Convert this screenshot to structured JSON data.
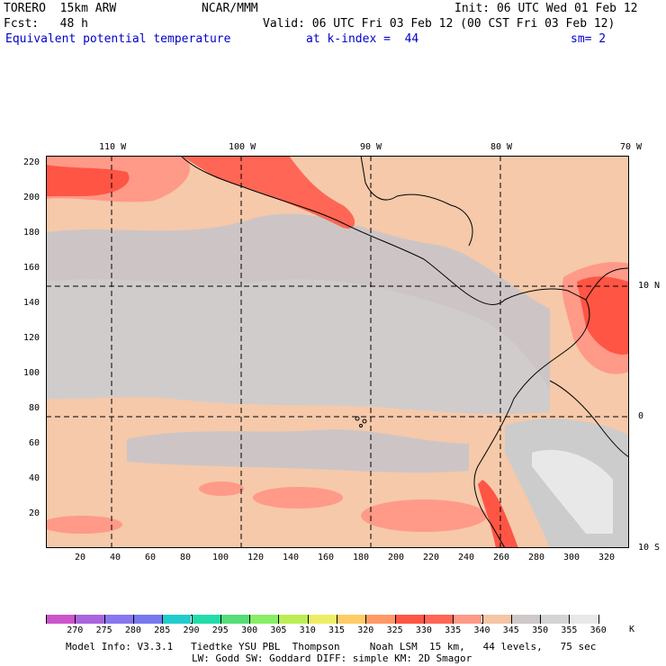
{
  "header": {
    "model": "TORERO  15km ARW",
    "org": "NCAR/MMM",
    "init": "Init: 06 UTC Wed 01 Feb 12",
    "fcst": "Fcst:   48 h",
    "valid": "Valid: 06 UTC Fri 03 Feb 12 (00 CST Fri 03 Feb 12)",
    "field": "Equivalent potential temperature",
    "level": "at k-index =  44",
    "smooth": "sm= 2"
  },
  "map": {
    "top_lon_labels": [
      "110 W",
      "100 W",
      "90 W",
      "80 W",
      "70 W"
    ],
    "right_lat_labels": [
      "10 N",
      "0",
      "10 S"
    ],
    "y_ticks": [
      "220",
      "200",
      "180",
      "160",
      "140",
      "120",
      "100",
      "80",
      "60",
      "40",
      "20"
    ],
    "x_ticks": [
      "20",
      "40",
      "60",
      "80",
      "100",
      "120",
      "140",
      "160",
      "180",
      "200",
      "220",
      "240",
      "260",
      "280",
      "300",
      "320"
    ]
  },
  "colorbar": {
    "labels": [
      "270",
      "275",
      "280",
      "285",
      "290",
      "295",
      "300",
      "305",
      "310",
      "315",
      "320",
      "325",
      "330",
      "335",
      "340",
      "345",
      "350",
      "355",
      "360"
    ],
    "unit": "K",
    "colors": [
      "#cc55cc",
      "#aa66dd",
      "#8877ee",
      "#7777ee",
      "#22cccc",
      "#22ddaa",
      "#55dd77",
      "#88ee66",
      "#bbee55",
      "#eeee66",
      "#ffcc66",
      "#ff9966",
      "#ff5544",
      "#ff6655",
      "#ff9988",
      "#f5c5a5",
      "#cfc8c8",
      "#d4d4d4",
      "#e8e8e8",
      "#ffffff"
    ]
  },
  "footer": {
    "line1": "Model Info: V3.3.1   Tiedtke YSU PBL  Thompson     Noah LSM  15 km,   44 levels,   75 sec",
    "line2": "LW: Godd SW: Goddard DIFF: simple KM: 2D Smagor"
  }
}
